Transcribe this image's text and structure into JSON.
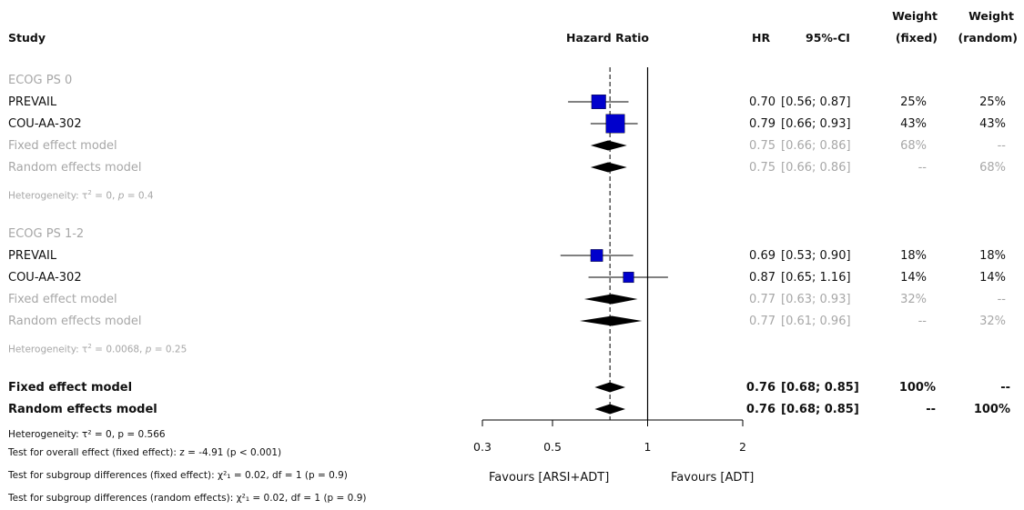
{
  "headers": {
    "study": "Study",
    "hazard_ratio": "Hazard Ratio",
    "hr": "HR",
    "ci": "95%-CI",
    "weight_fixed_1": "Weight",
    "weight_fixed_2": "(fixed)",
    "weight_random_1": "Weight",
    "weight_random_2": "(random)"
  },
  "groups": [
    {
      "label": "ECOG PS 0",
      "rows": [
        {
          "study": "PREVAIL",
          "hr": "0.70",
          "ci": "[0.56; 0.87]",
          "w_fixed": "25%",
          "w_random": "25%"
        },
        {
          "study": "COU-AA-302",
          "hr": "0.79",
          "ci": "[0.66; 0.93]",
          "w_fixed": "43%",
          "w_random": "43%"
        },
        {
          "study": "Fixed effect model",
          "hr": "0.75",
          "ci": "[0.66; 0.86]",
          "w_fixed": "68%",
          "w_random": "--"
        },
        {
          "study": "Random effects model",
          "hr": "0.75",
          "ci": "[0.66; 0.86]",
          "w_fixed": "--",
          "w_random": "68%"
        }
      ],
      "heterogeneity_prefix": "Heterogeneity: ",
      "heterogeneity_stat": " = 0, ",
      "heterogeneity_p": " = 0.4"
    },
    {
      "label": "ECOG PS 1-2",
      "rows": [
        {
          "study": "PREVAIL",
          "hr": "0.69",
          "ci": "[0.53; 0.90]",
          "w_fixed": "18%",
          "w_random": "18%"
        },
        {
          "study": "COU-AA-302",
          "hr": "0.87",
          "ci": "[0.65; 1.16]",
          "w_fixed": "14%",
          "w_random": "14%"
        },
        {
          "study": "Fixed effect model",
          "hr": "0.77",
          "ci": "[0.63; 0.93]",
          "w_fixed": "32%",
          "w_random": "--"
        },
        {
          "study": "Random effects model",
          "hr": "0.77",
          "ci": "[0.61; 0.96]",
          "w_fixed": "--",
          "w_random": "32%"
        }
      ],
      "heterogeneity_prefix": "Heterogeneity: ",
      "heterogeneity_stat": " = 0.0068, ",
      "heterogeneity_p": " = 0.25"
    }
  ],
  "overall": [
    {
      "study": "Fixed effect model",
      "hr": "0.76",
      "ci": "[0.68; 0.85]",
      "w_fixed": "100%",
      "w_random": "--"
    },
    {
      "study": "Random effects model",
      "hr": "0.76",
      "ci": "[0.68; 0.85]",
      "w_fixed": "--",
      "w_random": "100%"
    }
  ],
  "footer": {
    "heterogeneity": "Heterogeneity: τ² = 0, p = 0.566",
    "overall_effect": "Test for overall effect (fixed effect): z = -4.91 (p < 0.001)",
    "subgroup_fixed": "Test for subgroup differences (fixed effect): χ²₁ = 0.02, df = 1 (p = 0.9)",
    "subgroup_random": "Test for subgroup differences (random effects): χ²₁ = 0.02, df = 1 (p = 0.9)"
  },
  "axis": {
    "favours_left": "Favours [ARSI+ADT]",
    "favours_right": "Favours [ADT]"
  },
  "colors": {
    "study_box": "#0000cc",
    "diamond": "#000000",
    "gray_text": "#a7a7a7",
    "dashed_line": "#000000"
  },
  "chart_data": {
    "type": "forest",
    "scale": "log",
    "xlim": [
      0.3,
      2
    ],
    "ticks": [
      0.3,
      0.5,
      1,
      2
    ],
    "tick_labels": [
      "0.3",
      "0.5",
      "1",
      "2"
    ],
    "null_value": 1,
    "reference_line": 0.76,
    "studies": [
      {
        "group": "ECOG PS 0",
        "name": "PREVAIL",
        "hr": 0.7,
        "lower": 0.56,
        "upper": 0.87,
        "weight": 25,
        "kind": "study"
      },
      {
        "group": "ECOG PS 0",
        "name": "COU-AA-302",
        "hr": 0.79,
        "lower": 0.66,
        "upper": 0.93,
        "weight": 43,
        "kind": "study"
      },
      {
        "group": "ECOG PS 0",
        "name": "Fixed effect model",
        "hr": 0.75,
        "lower": 0.66,
        "upper": 0.86,
        "kind": "diamond"
      },
      {
        "group": "ECOG PS 0",
        "name": "Random effects model",
        "hr": 0.75,
        "lower": 0.66,
        "upper": 0.86,
        "kind": "diamond"
      },
      {
        "group": "ECOG PS 1-2",
        "name": "PREVAIL",
        "hr": 0.69,
        "lower": 0.53,
        "upper": 0.9,
        "weight": 18,
        "kind": "study"
      },
      {
        "group": "ECOG PS 1-2",
        "name": "COU-AA-302",
        "hr": 0.87,
        "lower": 0.65,
        "upper": 1.16,
        "weight": 14,
        "kind": "study"
      },
      {
        "group": "ECOG PS 1-2",
        "name": "Fixed effect model",
        "hr": 0.77,
        "lower": 0.63,
        "upper": 0.93,
        "kind": "diamond"
      },
      {
        "group": "ECOG PS 1-2",
        "name": "Random effects model",
        "hr": 0.77,
        "lower": 0.61,
        "upper": 0.96,
        "kind": "diamond"
      },
      {
        "group": "Overall",
        "name": "Fixed effect model",
        "hr": 0.76,
        "lower": 0.68,
        "upper": 0.85,
        "kind": "diamond"
      },
      {
        "group": "Overall",
        "name": "Random effects model",
        "hr": 0.76,
        "lower": 0.68,
        "upper": 0.85,
        "kind": "diamond"
      }
    ]
  }
}
